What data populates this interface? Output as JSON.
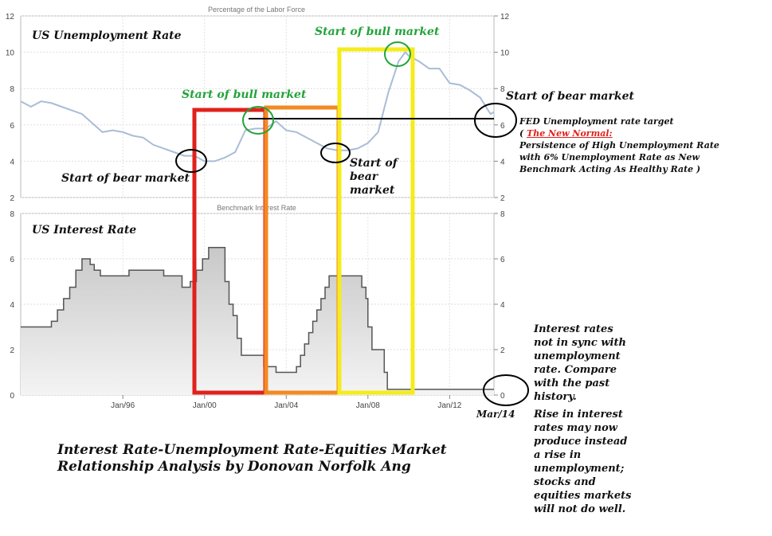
{
  "chart_data": [
    {
      "type": "line",
      "title": "Percentage of the Labor Force",
      "label": "US Unemployment Rate",
      "ylim": [
        2,
        12
      ],
      "yticks": [
        2,
        4,
        6,
        8,
        10,
        12
      ],
      "xlim": [
        1991.0,
        2014.17
      ],
      "xtick_labels": [
        "Jan/96",
        "Jan/00",
        "Jan/04",
        "Jan/08",
        "Jan/12"
      ],
      "xtick_values": [
        1996,
        2000,
        2004,
        2008,
        2012
      ],
      "series": [
        {
          "x": [
            1991.0,
            1991.5,
            1992.0,
            1992.5,
            1993.0,
            1993.5,
            1994.0,
            1994.5,
            1995.0,
            1995.5,
            1996.0,
            1996.5,
            1997.0,
            1997.5,
            1998.0,
            1998.5,
            1999.0,
            1999.5,
            2000.0,
            2000.5,
            2001.0,
            2001.5,
            2002.0,
            2002.5,
            2003.0,
            2003.5,
            2004.0,
            2004.5,
            2005.0,
            2005.5,
            2006.0,
            2006.5,
            2007.0,
            2007.5,
            2008.0,
            2008.5,
            2009.0,
            2009.5,
            2009.83,
            2010.0,
            2010.5,
            2011.0,
            2011.5,
            2012.0,
            2012.5,
            2013.0,
            2013.5,
            2014.0,
            2014.17
          ],
          "values": [
            7.3,
            7.0,
            7.3,
            7.2,
            7.0,
            6.8,
            6.6,
            6.1,
            5.6,
            5.7,
            5.6,
            5.4,
            5.3,
            4.9,
            4.7,
            4.5,
            4.3,
            4.3,
            4.0,
            4.0,
            4.2,
            4.5,
            5.7,
            5.8,
            5.8,
            6.2,
            5.7,
            5.6,
            5.3,
            5.0,
            4.7,
            4.6,
            4.6,
            4.7,
            5.0,
            5.6,
            7.8,
            9.5,
            10.0,
            9.8,
            9.5,
            9.1,
            9.1,
            8.3,
            8.2,
            7.9,
            7.5,
            6.6,
            6.7
          ],
          "color": "#a9bdd6"
        }
      ]
    },
    {
      "type": "area",
      "title": "Benchmark Interest Rate",
      "label": "US Interest Rate",
      "ylim": [
        0,
        8
      ],
      "yticks": [
        0,
        2,
        4,
        6,
        8
      ],
      "xlim": [
        1991.0,
        2014.17
      ],
      "xtick_labels": [
        "Jan/96",
        "Jan/00",
        "Jan/04",
        "Jan/08",
        "Jan/12"
      ],
      "xtick_values": [
        1996,
        2000,
        2004,
        2008,
        2012
      ],
      "end_label": "Mar/14",
      "series": [
        {
          "x": [
            1991.0,
            1992.5,
            1992.5,
            1992.8,
            1992.8,
            1993.1,
            1993.1,
            1993.4,
            1993.4,
            1993.7,
            1993.7,
            1994.0,
            1994.0,
            1994.2,
            1994.2,
            1994.4,
            1994.4,
            1994.6,
            1994.6,
            1994.9,
            1994.9,
            1995.5,
            1995.5,
            1995.9,
            1995.9,
            1996.3,
            1996.3,
            1998.0,
            1998.0,
            1998.9,
            1998.9,
            1999.3,
            1999.3,
            1999.6,
            1999.6,
            1999.9,
            1999.9,
            2000.2,
            2000.2,
            2000.4,
            2000.4,
            2001.0,
            2001.0,
            2001.2,
            2001.2,
            2001.4,
            2001.4,
            2001.6,
            2001.6,
            2001.8,
            2001.8,
            2002.0,
            2002.0,
            2002.9,
            2002.9,
            2003.5,
            2003.5,
            2004.5,
            2004.5,
            2004.7,
            2004.7,
            2004.9,
            2004.9,
            2005.1,
            2005.1,
            2005.3,
            2005.3,
            2005.5,
            2005.5,
            2005.7,
            2005.7,
            2005.9,
            2005.9,
            2006.1,
            2006.1,
            2006.3,
            2006.3,
            2007.7,
            2007.7,
            2007.9,
            2007.9,
            2008.0,
            2008.0,
            2008.2,
            2008.2,
            2008.8,
            2008.8,
            2008.95,
            2008.95,
            2014.17
          ],
          "values": [
            3.0,
            3.0,
            3.25,
            3.25,
            3.75,
            3.75,
            4.25,
            4.25,
            4.75,
            4.75,
            5.5,
            5.5,
            6.0,
            6.0,
            6.0,
            6.0,
            5.75,
            5.75,
            5.5,
            5.5,
            5.25,
            5.25,
            5.25,
            5.25,
            5.25,
            5.25,
            5.5,
            5.5,
            5.25,
            5.25,
            4.75,
            4.75,
            5.0,
            5.0,
            5.5,
            5.5,
            6.0,
            6.0,
            6.5,
            6.5,
            6.5,
            6.5,
            5.0,
            5.0,
            4.0,
            4.0,
            3.5,
            3.5,
            2.5,
            2.5,
            1.75,
            1.75,
            1.75,
            1.75,
            1.25,
            1.25,
            1.0,
            1.0,
            1.25,
            1.25,
            1.75,
            1.75,
            2.25,
            2.25,
            2.75,
            2.75,
            3.25,
            3.25,
            3.75,
            3.75,
            4.25,
            4.25,
            4.75,
            4.75,
            5.25,
            5.25,
            5.25,
            5.25,
            4.75,
            4.75,
            4.25,
            4.25,
            3.0,
            3.0,
            2.0,
            2.0,
            1.0,
            1.0,
            0.25,
            0.25
          ],
          "color": "#555555"
        }
      ]
    }
  ],
  "annotations": {
    "main_title_line1": "Interest Rate-Unemployment Rate-Equities Market",
    "main_title_line2": "Relationship Analysis by Donovan Norfolk Ang",
    "bull1": "Start of bull market",
    "bull2": "Start of bull market",
    "bear_left": "Start of bear market",
    "bear_mid_1": "Start of",
    "bear_mid_2": "bear",
    "bear_mid_3": "market",
    "bear_right": "Start of bear market",
    "fed_line1": "FED Unemployment rate target",
    "fed_line2_pre": "( ",
    "fed_line2_red": "The New Normal:",
    "fed_line3": "Persistence of High Unemployment Rate",
    "fed_line4": "with 6% Unemployment Rate as New",
    "fed_line5": "Benchmark Acting As Healthy Rate )",
    "note1": [
      "Interest rates",
      "not in sync with",
      "unemployment",
      "rate. Compare",
      "with the past",
      "history."
    ],
    "note2": [
      "Rise in interest",
      "rates may now",
      "produce instead",
      "a rise in",
      "unemployment;",
      "stocks and",
      "equities markets",
      "will not do well."
    ]
  },
  "colors": {
    "unemployment_line": "#a9bdd6",
    "interest_line": "#555555",
    "box_red": "#e0211b",
    "box_orange": "#f28a22",
    "box_yellow": "#f5ec1a",
    "bull_green": "#22a33a"
  }
}
